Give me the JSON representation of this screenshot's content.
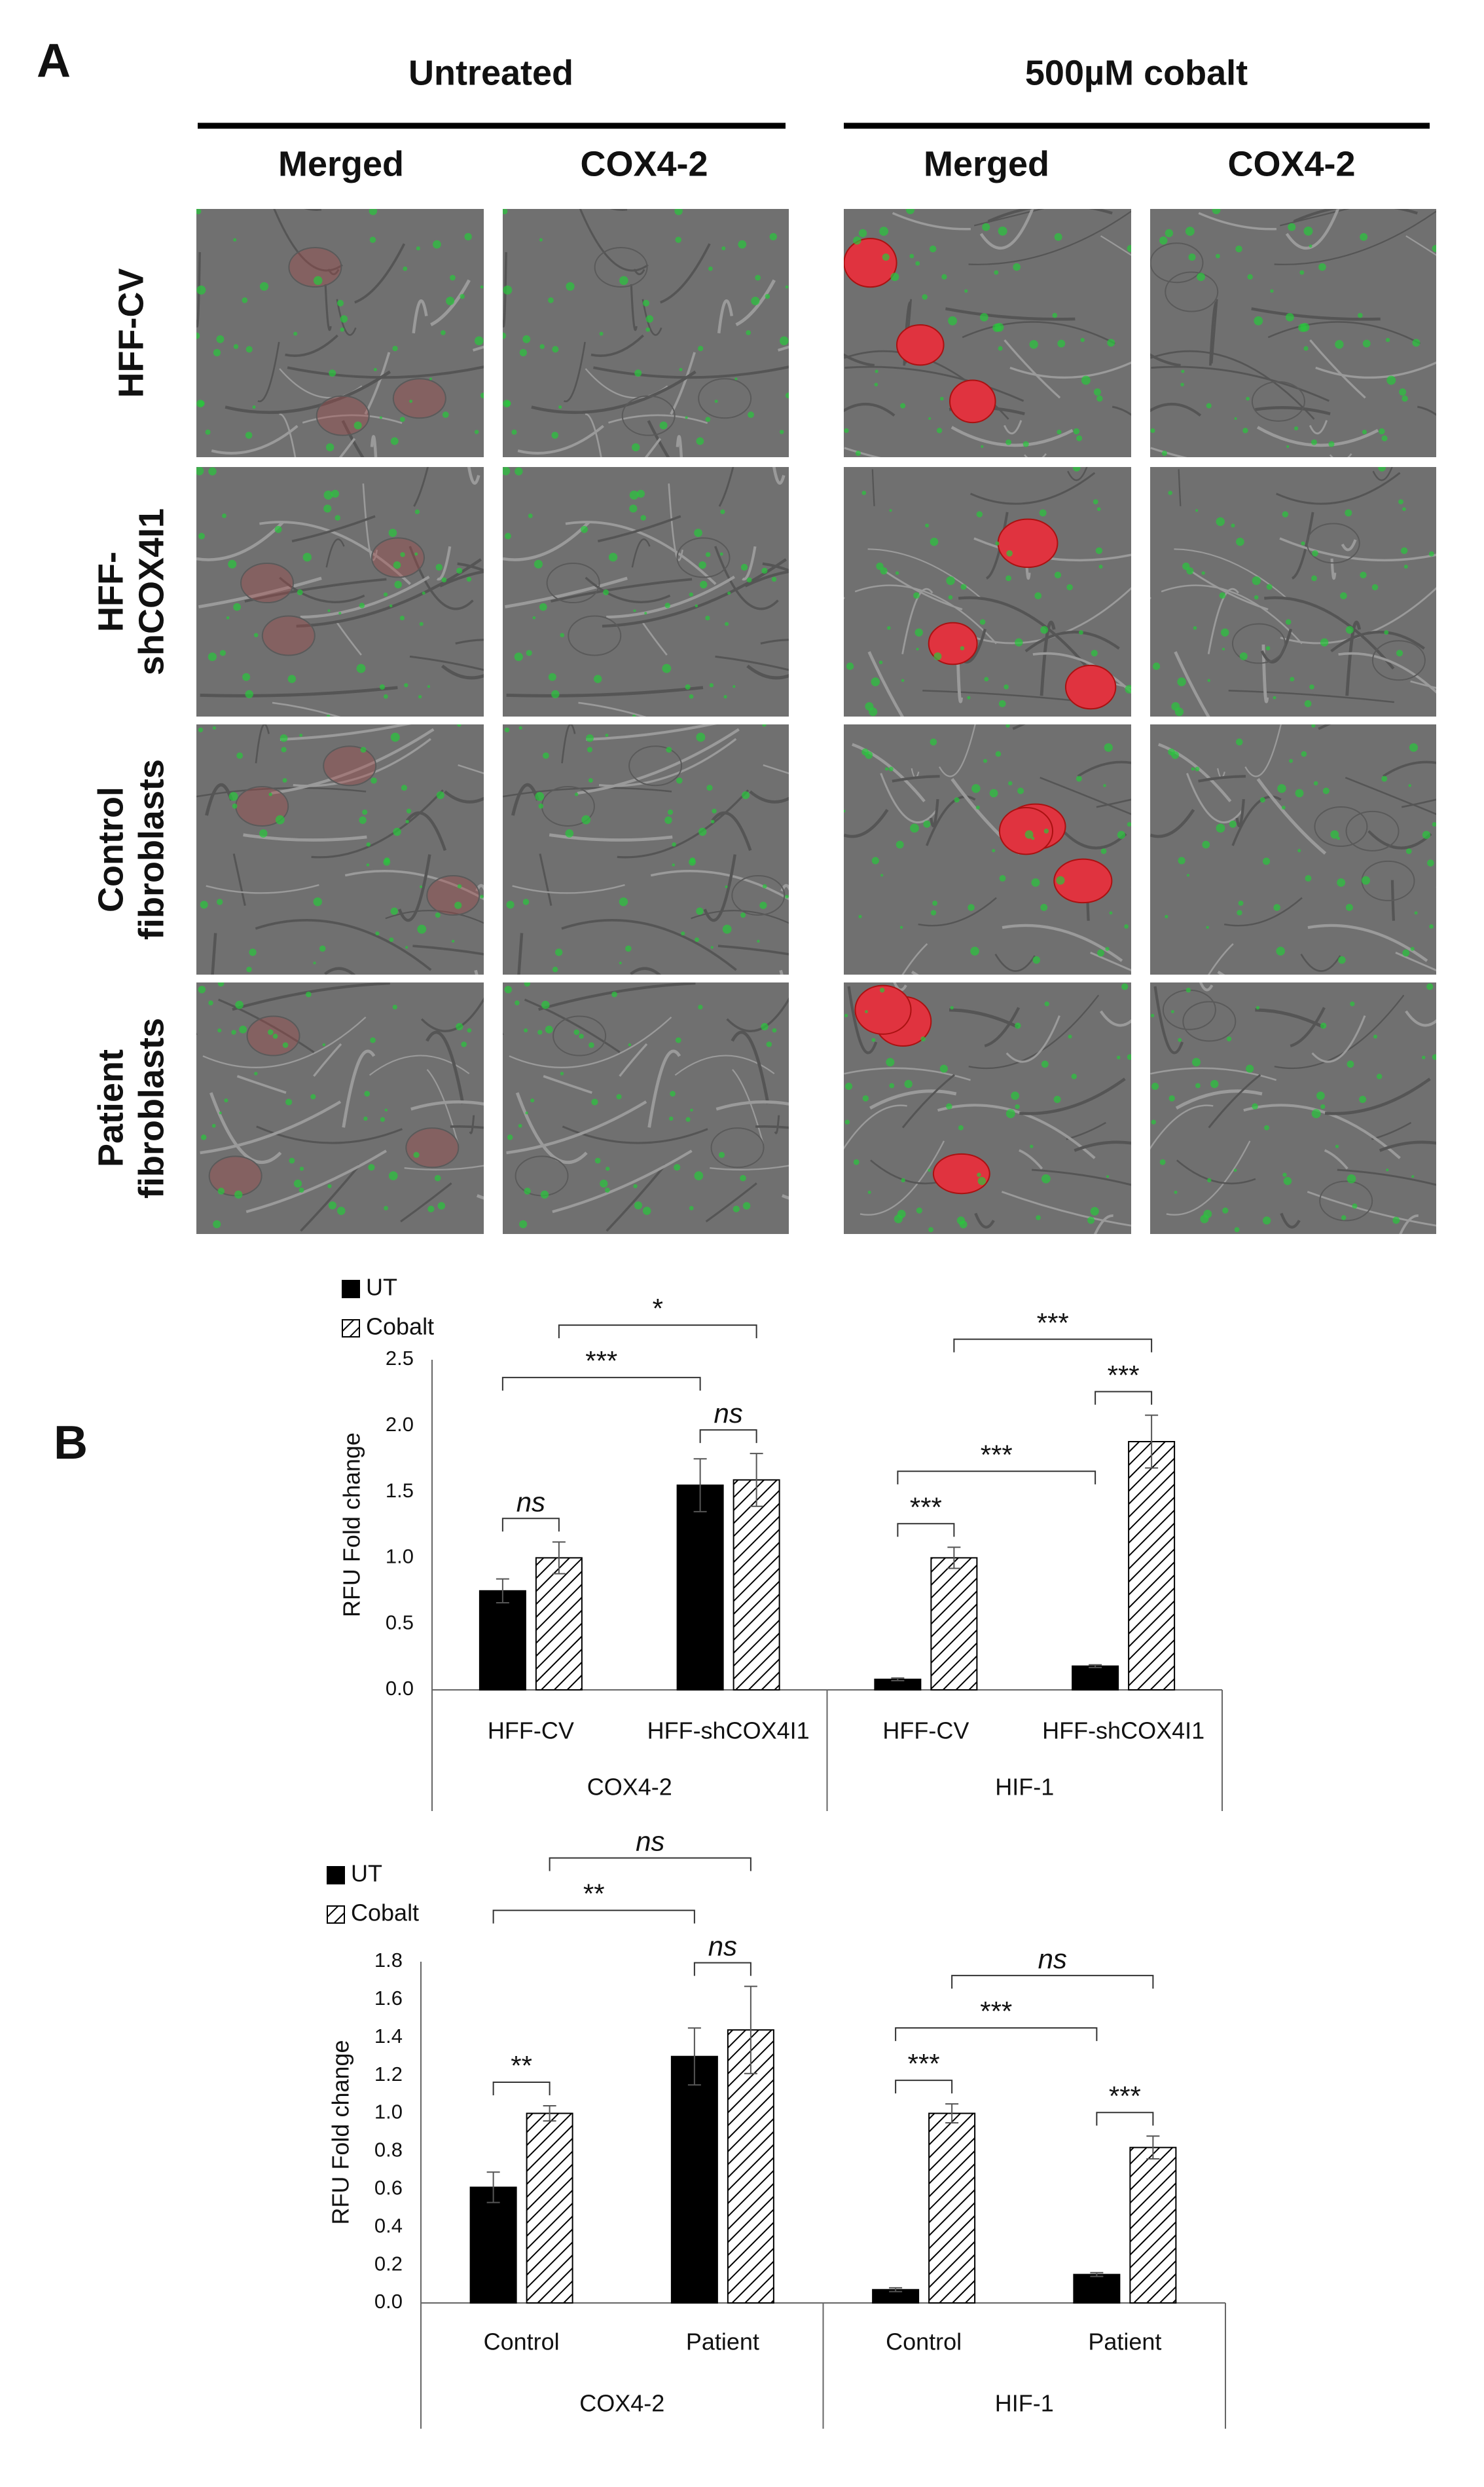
{
  "panel_a": {
    "label": "A",
    "groups": [
      "Untreated",
      "500µM cobalt"
    ],
    "columns": [
      "Merged",
      "COX4-2",
      "Merged",
      "COX4-2"
    ],
    "rows": [
      [
        "HFF-CV"
      ],
      [
        "HFF-",
        "shCOX4I1"
      ],
      [
        "Control",
        "fibroblasts"
      ],
      [
        "Patient",
        "fibroblasts"
      ]
    ]
  },
  "panel_b_label": "B",
  "chart_data": [
    {
      "type": "bar",
      "y_label": "RFU Fold change",
      "categories": [
        "HFF-CV",
        "HFF-shCOX4I1",
        "HFF-CV",
        "HFF-shCOX4I1"
      ],
      "group_labels": [
        "COX4-2",
        "HIF-1"
      ],
      "series": [
        {
          "name": "UT",
          "color": "#000000",
          "pattern": "solid",
          "values": [
            0.75,
            1.55,
            0.08,
            0.18
          ],
          "errors": [
            0.09,
            0.2,
            0.01,
            0.01
          ]
        },
        {
          "name": "Cobalt",
          "color": "#000000",
          "pattern": "hatch",
          "values": [
            1.0,
            1.59,
            1.0,
            1.88
          ],
          "errors": [
            0.12,
            0.2,
            0.08,
            0.2
          ]
        }
      ],
      "ylim": [
        0,
        2.5
      ],
      "yticks": [
        {
          "value": 0,
          "label": "0.0"
        },
        {
          "value": 0.5,
          "label": "0.5"
        },
        {
          "value": 1,
          "label": "1.0"
        },
        {
          "value": 1.5,
          "label": "1.5"
        },
        {
          "value": 2,
          "label": "2.0"
        },
        {
          "value": 2.5,
          "label": "2.5"
        }
      ],
      "annotations": [
        {
          "text": "ns",
          "style": "italic",
          "from": [
            0,
            0
          ],
          "to": [
            0,
            1
          ]
        },
        {
          "text": "ns",
          "style": "italic",
          "from": [
            1,
            0
          ],
          "to": [
            1,
            1
          ]
        },
        {
          "text": "***",
          "style": "normal",
          "from": [
            0,
            0
          ],
          "to": [
            1,
            0
          ]
        },
        {
          "text": "*",
          "style": "normal",
          "from": [
            0,
            1
          ],
          "to": [
            1,
            1
          ]
        },
        {
          "text": "***",
          "style": "normal",
          "from": [
            2,
            0
          ],
          "to": [
            2,
            1
          ]
        },
        {
          "text": "***",
          "style": "normal",
          "from": [
            2,
            0
          ],
          "to": [
            3,
            0
          ]
        },
        {
          "text": "***",
          "style": "normal",
          "from": [
            3,
            0
          ],
          "to": [
            3,
            1
          ]
        },
        {
          "text": "***",
          "style": "normal",
          "from": [
            2,
            1
          ],
          "to": [
            3,
            1
          ]
        }
      ]
    },
    {
      "type": "bar",
      "y_label": "RFU Fold change",
      "categories": [
        "Control",
        "Patient",
        "Control",
        "Patient"
      ],
      "group_labels": [
        "COX4-2",
        "HIF-1"
      ],
      "series": [
        {
          "name": "UT",
          "color": "#000000",
          "pattern": "solid",
          "values": [
            0.61,
            1.3,
            0.07,
            0.15
          ],
          "errors": [
            0.08,
            0.15,
            0.01,
            0.01
          ]
        },
        {
          "name": "Cobalt",
          "color": "#000000",
          "pattern": "hatch",
          "values": [
            1.0,
            1.44,
            1.0,
            0.82
          ],
          "errors": [
            0.04,
            0.23,
            0.05,
            0.06
          ]
        }
      ],
      "ylim": [
        0,
        1.8
      ],
      "yticks": [
        {
          "value": 0,
          "label": "0.0"
        },
        {
          "value": 0.2,
          "label": "0.2"
        },
        {
          "value": 0.4,
          "label": "0.4"
        },
        {
          "value": 0.6,
          "label": "0.6"
        },
        {
          "value": 0.8,
          "label": "0.8"
        },
        {
          "value": 1,
          "label": "1.0"
        },
        {
          "value": 1.2,
          "label": "1.2"
        },
        {
          "value": 1.4,
          "label": "1.4"
        },
        {
          "value": 1.6,
          "label": "1.6"
        },
        {
          "value": 1.8,
          "label": "1.8"
        }
      ],
      "annotations": [
        {
          "text": "**",
          "style": "normal",
          "from": [
            0,
            0
          ],
          "to": [
            0,
            1
          ]
        },
        {
          "text": "ns",
          "style": "italic",
          "from": [
            1,
            0
          ],
          "to": [
            1,
            1
          ]
        },
        {
          "text": "**",
          "style": "normal",
          "from": [
            0,
            0
          ],
          "to": [
            1,
            0
          ]
        },
        {
          "text": "ns",
          "style": "italic",
          "from": [
            0,
            1
          ],
          "to": [
            1,
            1
          ]
        },
        {
          "text": "***",
          "style": "normal",
          "from": [
            2,
            0
          ],
          "to": [
            2,
            1
          ]
        },
        {
          "text": "***",
          "style": "normal",
          "from": [
            3,
            0
          ],
          "to": [
            3,
            1
          ]
        },
        {
          "text": "***",
          "style": "normal",
          "from": [
            2,
            0
          ],
          "to": [
            3,
            0
          ]
        },
        {
          "text": "ns",
          "style": "italic",
          "from": [
            2,
            1
          ],
          "to": [
            3,
            1
          ]
        }
      ]
    }
  ]
}
